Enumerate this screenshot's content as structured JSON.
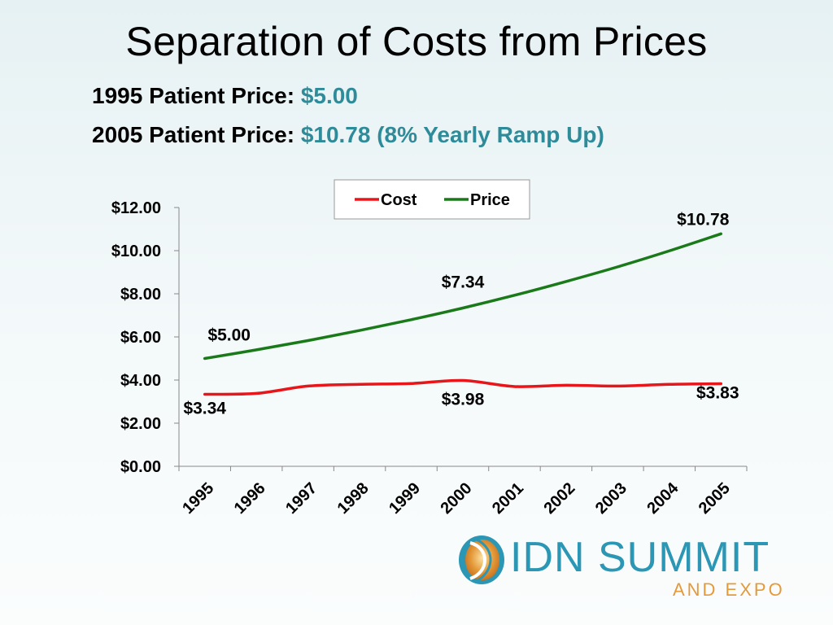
{
  "slide": {
    "title": "Separation of Costs from Prices",
    "line1_label": "1995 Patient Price:",
    "line1_value": "$5.00",
    "line2_label": "2005 Patient Price:",
    "line2_value": "$10.78 (8% Yearly Ramp Up)"
  },
  "logo": {
    "name": "IDN SUMMIT",
    "tagline": "AND EXPO",
    "icon": "swirl-logo-icon"
  },
  "colors": {
    "accent_text": "#2e8b99",
    "cost_line": "#e8161b",
    "price_line": "#1a7a1a",
    "logo_blue": "#2b97b5",
    "logo_orange": "#e59a3a"
  },
  "chart_data": {
    "type": "line",
    "categories": [
      "1995",
      "1996",
      "1997",
      "1998",
      "1999",
      "2000",
      "2001",
      "2002",
      "2003",
      "2004",
      "2005"
    ],
    "series": [
      {
        "name": "Cost",
        "color": "#e8161b",
        "values": [
          3.34,
          3.38,
          3.72,
          3.8,
          3.84,
          3.98,
          3.7,
          3.76,
          3.72,
          3.8,
          3.83
        ]
      },
      {
        "name": "Price",
        "color": "#1a7a1a",
        "values": [
          5.0,
          5.4,
          5.83,
          6.3,
          6.8,
          7.34,
          7.93,
          8.57,
          9.25,
          9.99,
          10.78
        ]
      }
    ],
    "ylim": [
      0,
      12
    ],
    "yticks": [
      "$0.00",
      "$2.00",
      "$4.00",
      "$6.00",
      "$8.00",
      "$10.00",
      "$12.00"
    ],
    "annotations": [
      {
        "series": 0,
        "index": 0,
        "text": "$3.34"
      },
      {
        "series": 0,
        "index": 5,
        "text": "$3.98"
      },
      {
        "series": 0,
        "index": 10,
        "text": "$3.83"
      },
      {
        "series": 1,
        "index": 0,
        "text": "$5.00"
      },
      {
        "series": 1,
        "index": 5,
        "text": "$7.34"
      },
      {
        "series": 1,
        "index": 10,
        "text": "$10.78"
      }
    ],
    "legend": "top-center",
    "grid": false
  }
}
